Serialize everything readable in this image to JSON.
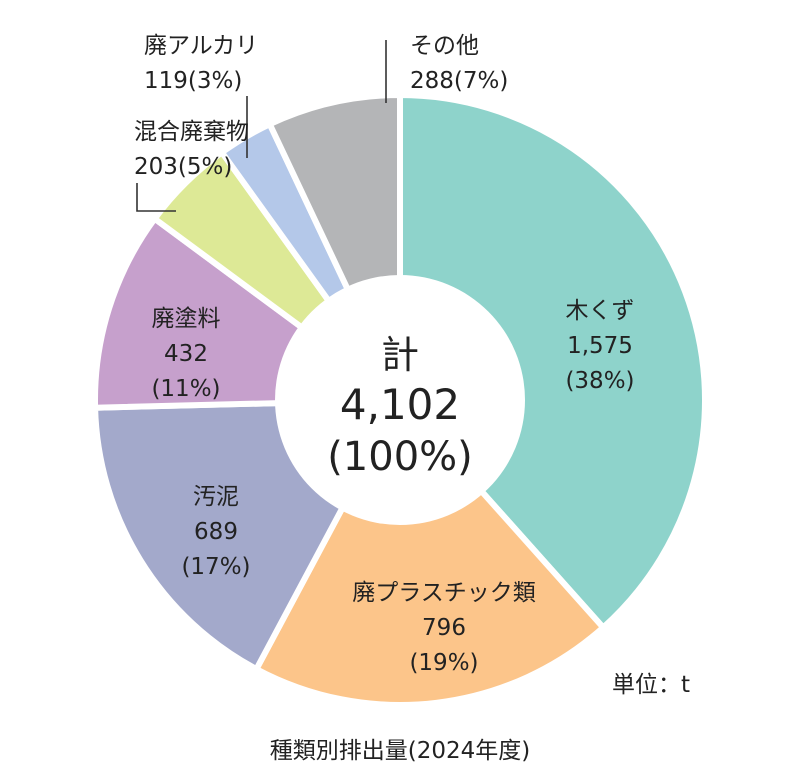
{
  "chart_data": {
    "type": "pie",
    "variant": "donut",
    "categories": [
      "木くず",
      "廃プラスチック類",
      "汚泥",
      "廃塗料",
      "混合廃棄物",
      "廃アルカリ",
      "その他"
    ],
    "values": [
      1575,
      796,
      689,
      432,
      203,
      119,
      288
    ],
    "value_labels": [
      "1,575",
      "796",
      "689",
      "432",
      "203",
      "119",
      "288"
    ],
    "percent_labels": [
      "(38%)",
      "(19%)",
      "(17%)",
      "(11%)",
      "(5%)",
      "(3%)",
      "(7%)"
    ],
    "colors": [
      "#8ed3cb",
      "#fcc58a",
      "#a3a9cb",
      "#c6a0cc",
      "#dde996",
      "#b4c8e9",
      "#b4b5b7"
    ],
    "slice_outline_color": "#ffffff",
    "total": {
      "label": "計",
      "value": "4,102",
      "percent": "(100%)"
    },
    "unit_label": "単位：t",
    "caption": "種類別排出量(2024年度)",
    "legend": "none"
  }
}
